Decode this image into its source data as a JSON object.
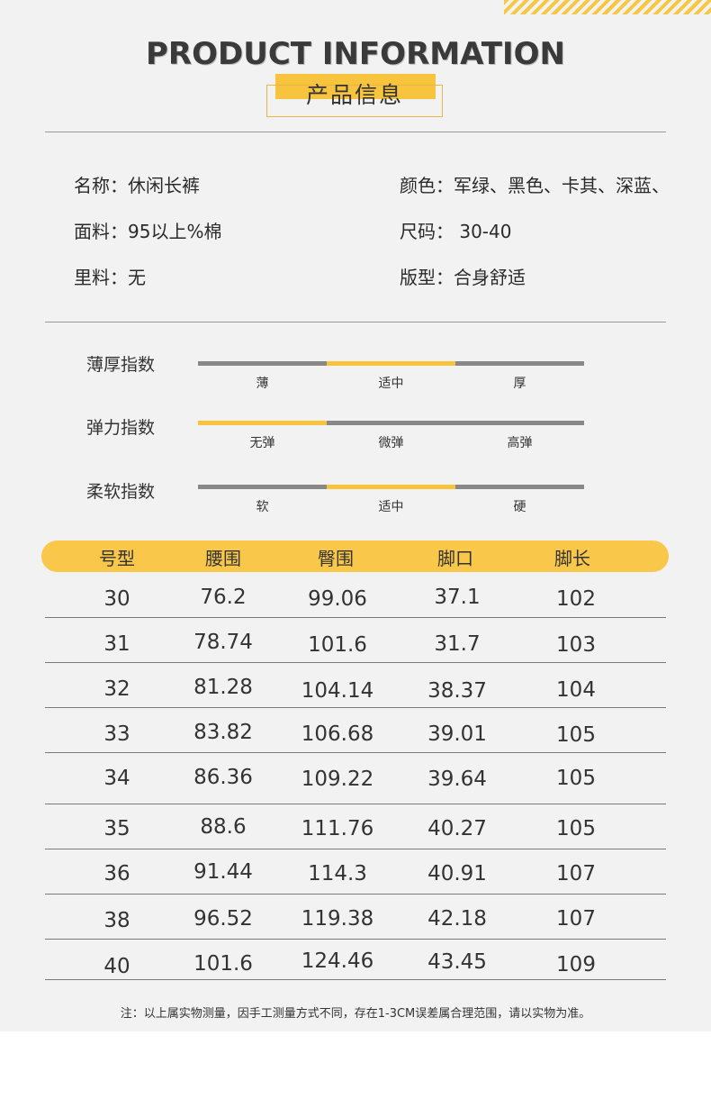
{
  "header": {
    "title_en": "PRODUCT INFORMATION",
    "title_cn": "产品信息"
  },
  "info": {
    "name": "名称：休闲长裤",
    "color": "颜色：军绿、黑色、卡其、深蓝、",
    "fabric": "面料：95以上%棉",
    "size": "尺码：  30-40",
    "lining": "里料：无",
    "fit": "版型：合身舒适"
  },
  "indexes": [
    {
      "label": "薄厚指数",
      "options": [
        "薄",
        "适中",
        "厚"
      ],
      "selected": 1
    },
    {
      "label": "弹力指数",
      "options": [
        "无弹",
        "微弹",
        "高弹"
      ],
      "selected": 0
    },
    {
      "label": "柔软指数",
      "options": [
        "软",
        "适中",
        "硬"
      ],
      "selected": 1
    }
  ],
  "colors": {
    "accent": "#f8c43d",
    "bar_grey": "#888888",
    "background": "#f2f2f2"
  },
  "table": {
    "headers": [
      "号型",
      "腰围",
      "臀围",
      "脚口",
      "脚长"
    ],
    "rows": [
      [
        "30",
        "76.2",
        "99.06",
        "37.1",
        "102"
      ],
      [
        "31",
        "78.74",
        "101.6",
        "31.7",
        "103"
      ],
      [
        "32",
        "81.28",
        "104.14",
        "38.37",
        "104"
      ],
      [
        "33",
        "83.82",
        "106.68",
        "39.01",
        "105"
      ],
      [
        "34",
        "86.36",
        "109.22",
        "39.64",
        "105"
      ],
      [
        "35",
        "88.6",
        "111.76",
        "40.27",
        "105"
      ],
      [
        "36",
        "91.44",
        "114.3",
        "40.91",
        "107"
      ],
      [
        "38",
        "96.52",
        "119.38",
        "42.18",
        "107"
      ],
      [
        "40",
        "101.6",
        "124.46",
        "43.45",
        "109"
      ]
    ]
  },
  "note": "注：以上属实物测量，因手工测量方式不同，存在1-3CM误差属合理范围，请以实物为准。"
}
